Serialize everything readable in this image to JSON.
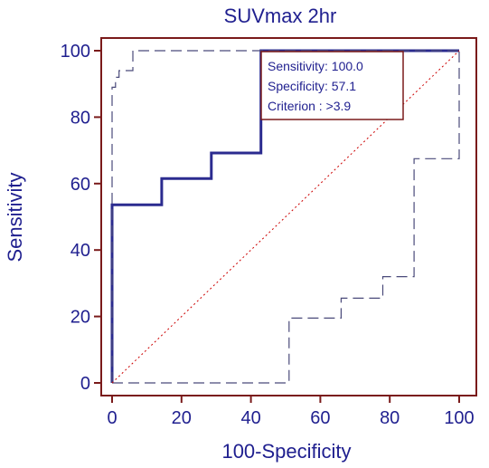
{
  "chart_data": {
    "type": "line",
    "title": "SUVmax 2hr",
    "xlabel": "100-Specificity",
    "ylabel": "Sensitivity",
    "xlim": [
      0,
      100
    ],
    "ylim": [
      0,
      100
    ],
    "xticks": [
      0,
      20,
      40,
      60,
      80,
      100
    ],
    "yticks": [
      0,
      20,
      40,
      60,
      80,
      100
    ],
    "grid": false,
    "series": [
      {
        "role": "roc",
        "style": "solid",
        "color": "#2b2b8f",
        "points": [
          [
            0,
            0
          ],
          [
            0,
            53.6
          ],
          [
            14.3,
            53.6
          ],
          [
            14.3,
            61.5
          ],
          [
            28.6,
            61.5
          ],
          [
            28.6,
            69.2
          ],
          [
            42.9,
            69.2
          ],
          [
            42.9,
            100
          ],
          [
            100,
            100
          ]
        ]
      },
      {
        "role": "confidence-upper",
        "style": "dashed",
        "color": "#4a4a7a",
        "points": [
          [
            0,
            0
          ],
          [
            0,
            89
          ],
          [
            1,
            89
          ],
          [
            1,
            92
          ],
          [
            2,
            92
          ],
          [
            2,
            94
          ],
          [
            6,
            94
          ],
          [
            6,
            100
          ],
          [
            100,
            100
          ]
        ]
      },
      {
        "role": "confidence-lower",
        "style": "dashed",
        "color": "#4a4a7a",
        "points": [
          [
            0,
            0
          ],
          [
            51,
            0
          ],
          [
            51,
            19.5
          ],
          [
            66,
            19.5
          ],
          [
            66,
            25.5
          ],
          [
            78,
            25.5
          ],
          [
            78,
            32
          ],
          [
            87,
            32
          ],
          [
            87,
            67.5
          ],
          [
            100,
            67.5
          ],
          [
            100,
            100
          ]
        ]
      },
      {
        "role": "reference-diagonal",
        "style": "dotted",
        "color": "#cc0000",
        "points": [
          [
            0,
            0
          ],
          [
            100,
            100
          ]
        ]
      }
    ],
    "annotation": {
      "sensitivity": "Sensitivity: 100.0",
      "specificity": "Specificity: 57.1",
      "criterion": "Criterion : >3.9"
    },
    "colors": {
      "frame": "#7a1a1a",
      "text": "#1f1f8f",
      "annotation_border": "#7a1a1a"
    }
  }
}
